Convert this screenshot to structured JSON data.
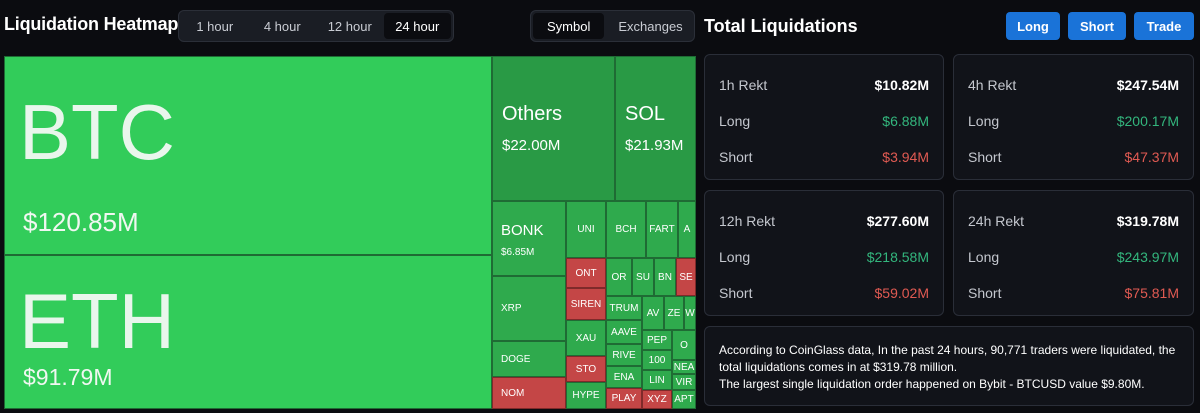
{
  "heatmap": {
    "title": "Liquidation Heatmap",
    "time_options": [
      "1 hour",
      "4 hour",
      "12 hour",
      "24 hour"
    ],
    "active_time": "24 hour",
    "view_options": [
      "Symbol",
      "Exchanges"
    ],
    "active_view": "Symbol",
    "tiles": {
      "btc": {
        "symbol": "BTC",
        "value": "$120.85M"
      },
      "eth": {
        "symbol": "ETH",
        "value": "$91.79M"
      },
      "others": {
        "symbol": "Others",
        "value": "$22.00M"
      },
      "sol": {
        "symbol": "SOL",
        "value": "$21.93M"
      },
      "bonk": {
        "symbol": "BONK",
        "value": "$6.85M"
      },
      "uni": "UNI",
      "bch": "BCH",
      "fart": "FART",
      "a": "A",
      "xrp": "XRP",
      "ont": "ONT",
      "or": "OR",
      "su": "SU",
      "bn": "BN",
      "se": "SE",
      "siren": "SIREN",
      "trum": "TRUM",
      "av": "AV",
      "ze": "ZE",
      "w": "W",
      "xau": "XAU",
      "aave": "AAVE",
      "pep": "PEP",
      "o": "O",
      "doge": "DOGE",
      "rive": "RIVE",
      "n100": "100",
      "nea": "NEA",
      "sto": "STO",
      "ena": "ENA",
      "lin": "LIN",
      "vir": "VIR",
      "nom": "NOM",
      "hype": "HYPE",
      "play": "PLAY",
      "xyz": "XYZ",
      "apt": "APT"
    }
  },
  "total": {
    "title": "Total Liquidations",
    "buttons": {
      "long": "Long",
      "short": "Short",
      "trade": "Trade"
    },
    "cards": [
      {
        "label": "1h Rekt",
        "total": "$10.82M",
        "long_label": "Long",
        "long": "$6.88M",
        "short_label": "Short",
        "short": "$3.94M"
      },
      {
        "label": "4h Rekt",
        "total": "$247.54M",
        "long_label": "Long",
        "long": "$200.17M",
        "short_label": "Short",
        "short": "$47.37M"
      },
      {
        "label": "12h Rekt",
        "total": "$277.60M",
        "long_label": "Long",
        "long": "$218.58M",
        "short_label": "Short",
        "short": "$59.02M"
      },
      {
        "label": "24h Rekt",
        "total": "$319.78M",
        "long_label": "Long",
        "long": "$243.97M",
        "short_label": "Short",
        "short": "$75.81M"
      }
    ],
    "summary_line1": "According to CoinGlass data, In the past 24 hours, 90,771 traders were liquidated, the total liquidations comes in at $319.78 million.",
    "summary_line2": "The largest single liquidation order happened on Bybit - BTCUSD value $9.80M."
  },
  "colors": {
    "long_green": "#33b67d",
    "short_red": "#e05a52",
    "accent_blue": "#1a73d8",
    "tile_green": "#32cc5a",
    "tile_red": "#c44646"
  }
}
